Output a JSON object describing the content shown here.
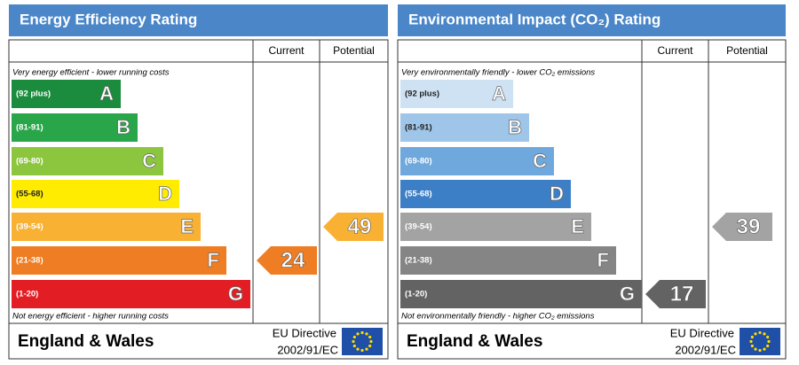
{
  "panels": [
    {
      "title": "Energy Efficiency Rating",
      "header": {
        "current": "Current",
        "potential": "Potential"
      },
      "top_note": "Very energy efficient - lower running costs",
      "bottom_note": "Not energy efficient - higher running costs",
      "bands": [
        {
          "range": "(92 plus)",
          "letter": "A",
          "color": "#1b8b3d"
        },
        {
          "range": "(81-91)",
          "letter": "B",
          "color": "#2aa64a"
        },
        {
          "range": "(69-80)",
          "letter": "C",
          "color": "#8cc63f"
        },
        {
          "range": "(55-68)",
          "letter": "D",
          "color": "#ffec00"
        },
        {
          "range": "(39-54)",
          "letter": "E",
          "color": "#f8b133"
        },
        {
          "range": "(21-38)",
          "letter": "F",
          "color": "#ee7d23"
        },
        {
          "range": "(1-20)",
          "letter": "G",
          "color": "#e21d24"
        }
      ],
      "current": "24",
      "potential": "49",
      "footer": {
        "region": "England & Wales",
        "directive": "EU Directive",
        "directive_code": "2002/91/EC"
      }
    },
    {
      "title": "Environmental Impact (CO₂) Rating",
      "header": {
        "current": "Current",
        "potential": "Potential"
      },
      "top_note": "Very environmentally friendly - lower CO₂ emissions",
      "bottom_note": "Not environmentally friendly - higher CO₂ emissions",
      "bands": [
        {
          "range": "(92 plus)",
          "letter": "A",
          "color": "#cfe2f3"
        },
        {
          "range": "(81-91)",
          "letter": "B",
          "color": "#9fc5e8"
        },
        {
          "range": "(69-80)",
          "letter": "C",
          "color": "#6fa8dc"
        },
        {
          "range": "(55-68)",
          "letter": "D",
          "color": "#3d7fc6"
        },
        {
          "range": "(39-54)",
          "letter": "E",
          "color": "#a3a3a3"
        },
        {
          "range": "(21-38)",
          "letter": "F",
          "color": "#858585"
        },
        {
          "range": "(1-20)",
          "letter": "G",
          "color": "#636363"
        }
      ],
      "current": "17",
      "potential": "39",
      "footer": {
        "region": "England & Wales",
        "directive": "EU Directive",
        "directive_code": "2002/91/EC"
      }
    }
  ]
}
